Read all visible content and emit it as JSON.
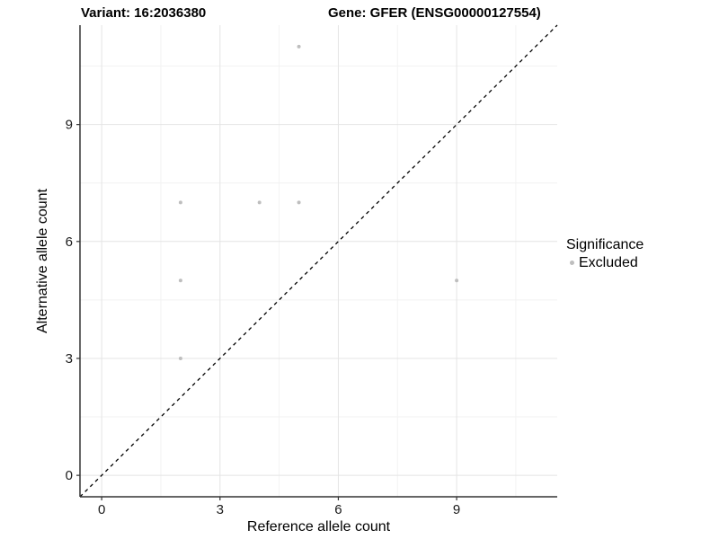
{
  "chart_data": {
    "type": "scatter",
    "title_left": "Variant: 16:2036380",
    "title_right": "Gene: GFER (ENSG00000127554)",
    "xlabel": "Reference allele count",
    "ylabel": "Alternative allele count",
    "xlim": [
      -0.55,
      11.55
    ],
    "ylim": [
      -0.55,
      11.55
    ],
    "xticks": [
      0,
      3,
      6,
      9
    ],
    "yticks": [
      0,
      3,
      6,
      9
    ],
    "xminor": [
      1.5,
      4.5,
      7.5,
      10.5
    ],
    "yminor": [
      1.5,
      4.5,
      7.5,
      10.5
    ],
    "grid": "major+minor",
    "identity_line": {
      "type": "abline",
      "slope": 1,
      "intercept": 0,
      "style": "dashed"
    },
    "series": [
      {
        "name": "Excluded",
        "color": "#bebebe",
        "points": [
          [
            2,
            3
          ],
          [
            2,
            5
          ],
          [
            2,
            7
          ],
          [
            4,
            7
          ],
          [
            5,
            7
          ],
          [
            5,
            11
          ],
          [
            9,
            5
          ]
        ]
      }
    ],
    "legend": {
      "title": "Significance",
      "position": "right",
      "items": [
        {
          "label": "Excluded",
          "color": "#bebebe"
        }
      ]
    },
    "colors": {
      "grid_major": "#e4e4e4",
      "grid_minor": "#f2f2f2",
      "axis": "#333333",
      "tick_label": "#1a1a1a",
      "axis_title": "#000000",
      "identity_line": "#000000"
    }
  }
}
